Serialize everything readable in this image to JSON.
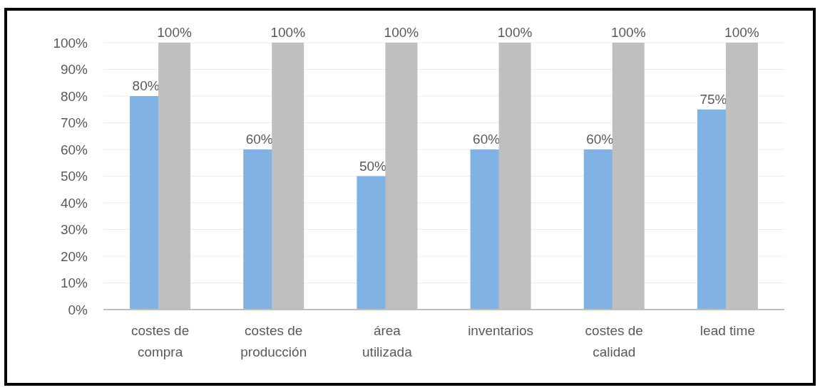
{
  "chart_data": {
    "type": "bar",
    "categories": [
      "costes de compra",
      "costes de producción",
      "área utilizada",
      "inventarios",
      "costes de calidad",
      "lead time"
    ],
    "series": [
      {
        "color": "#80b3e3",
        "values": [
          80,
          60,
          50,
          60,
          60,
          75
        ],
        "value_labels": [
          "80%",
          "60%",
          "50%",
          "60%",
          "60%",
          "75%"
        ]
      },
      {
        "color": "#bfbfbf",
        "values": [
          100,
          100,
          100,
          100,
          100,
          100
        ],
        "value_labels": [
          "100%",
          "100%",
          "100%",
          "100%",
          "100%",
          "100%"
        ]
      }
    ],
    "ylim": [
      0,
      100
    ],
    "yticks": [
      {
        "value": 0,
        "label": "0%"
      },
      {
        "value": 10,
        "label": "10%"
      },
      {
        "value": 20,
        "label": "20%"
      },
      {
        "value": 30,
        "label": "30%"
      },
      {
        "value": 40,
        "label": "40%"
      },
      {
        "value": 50,
        "label": "50%"
      },
      {
        "value": 60,
        "label": "60%"
      },
      {
        "value": 70,
        "label": "70%"
      },
      {
        "value": 80,
        "label": "80%"
      },
      {
        "value": 90,
        "label": "90%"
      },
      {
        "value": 100,
        "label": "100%"
      }
    ],
    "grid": "y"
  }
}
